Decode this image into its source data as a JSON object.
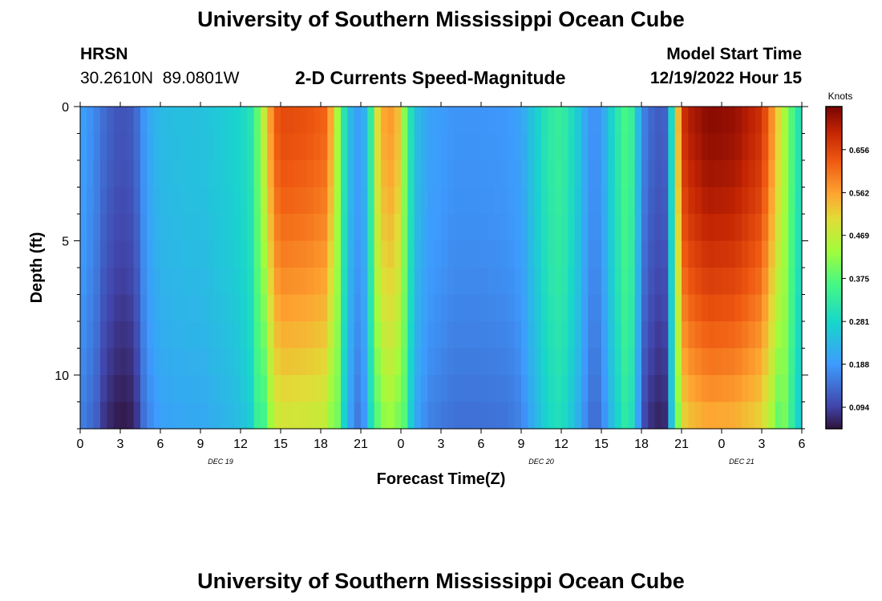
{
  "page": {
    "title": "University of Southern Mississippi Ocean Cube",
    "station_name": "HRSN",
    "coordinates": "30.2610N  89.0801W",
    "plot_title": "2-D Currents Speed-Magnitude",
    "model_start_label": "Model Start Time",
    "model_start_value": "12/19/2022 Hour 15",
    "footer_title": "University of Southern Mississippi Ocean Cube"
  },
  "chart_data": {
    "type": "heatmap",
    "title": "2-D Currents Speed-Magnitude",
    "xlabel": "Forecast Time(Z)",
    "ylabel": "Depth (ft)",
    "colorbar_label": "Knots",
    "x_ticks": [
      "0",
      "3",
      "6",
      "9",
      "12",
      "15",
      "18",
      "21",
      "0",
      "3",
      "6",
      "9",
      "12",
      "15",
      "18",
      "21",
      "0",
      "3",
      "6"
    ],
    "date_labels": [
      {
        "label": "DEC 19",
        "tick_index": 3.5
      },
      {
        "label": "DEC 20",
        "tick_index": 11.5
      },
      {
        "label": "DEC 21",
        "tick_index": 16.5
      }
    ],
    "y_ticks": [
      0,
      5,
      10
    ],
    "ylim": [
      0,
      12
    ],
    "y_inverted": true,
    "colorbar_ticks": [
      0.094,
      0.188,
      0.281,
      0.375,
      0.469,
      0.562,
      0.656
    ],
    "colorbar_range": [
      0.047,
      0.75
    ],
    "time_range_hours": [
      0,
      54
    ],
    "speed_profile": [
      [
        0,
        0.2
      ],
      [
        1,
        0.17
      ],
      [
        2,
        0.13
      ],
      [
        3,
        0.11
      ],
      [
        4,
        0.12
      ],
      [
        5,
        0.2
      ],
      [
        6,
        0.235
      ],
      [
        7,
        0.24
      ],
      [
        8,
        0.245
      ],
      [
        9,
        0.245
      ],
      [
        10,
        0.255
      ],
      [
        11,
        0.265
      ],
      [
        12,
        0.28
      ],
      [
        12.8,
        0.31
      ],
      [
        13.5,
        0.42
      ],
      [
        14.5,
        0.62
      ],
      [
        15,
        0.65
      ],
      [
        17,
        0.64
      ],
      [
        18.5,
        0.62
      ],
      [
        19.2,
        0.45
      ],
      [
        19.8,
        0.3
      ],
      [
        20.4,
        0.21
      ],
      [
        21,
        0.18
      ],
      [
        21.6,
        0.28
      ],
      [
        22.3,
        0.52
      ],
      [
        23,
        0.58
      ],
      [
        23.7,
        0.55
      ],
      [
        24.3,
        0.4
      ],
      [
        25,
        0.25
      ],
      [
        26,
        0.2
      ],
      [
        28,
        0.18
      ],
      [
        30,
        0.18
      ],
      [
        32,
        0.185
      ],
      [
        33,
        0.2
      ],
      [
        34,
        0.26
      ],
      [
        35,
        0.32
      ],
      [
        36,
        0.34
      ],
      [
        37,
        0.28
      ],
      [
        38,
        0.19
      ],
      [
        38.5,
        0.17
      ],
      [
        39,
        0.19
      ],
      [
        40,
        0.3
      ],
      [
        41,
        0.38
      ],
      [
        41.5,
        0.3
      ],
      [
        42,
        0.17
      ],
      [
        43,
        0.12
      ],
      [
        44,
        0.13
      ],
      [
        44.6,
        0.5
      ],
      [
        45.3,
        0.7
      ],
      [
        47,
        0.74
      ],
      [
        49,
        0.73
      ],
      [
        51,
        0.68
      ],
      [
        52,
        0.55
      ],
      [
        53,
        0.4
      ],
      [
        54,
        0.28
      ]
    ],
    "depth_factor_note": "Speeds decrease with depth in strong-current bands"
  }
}
